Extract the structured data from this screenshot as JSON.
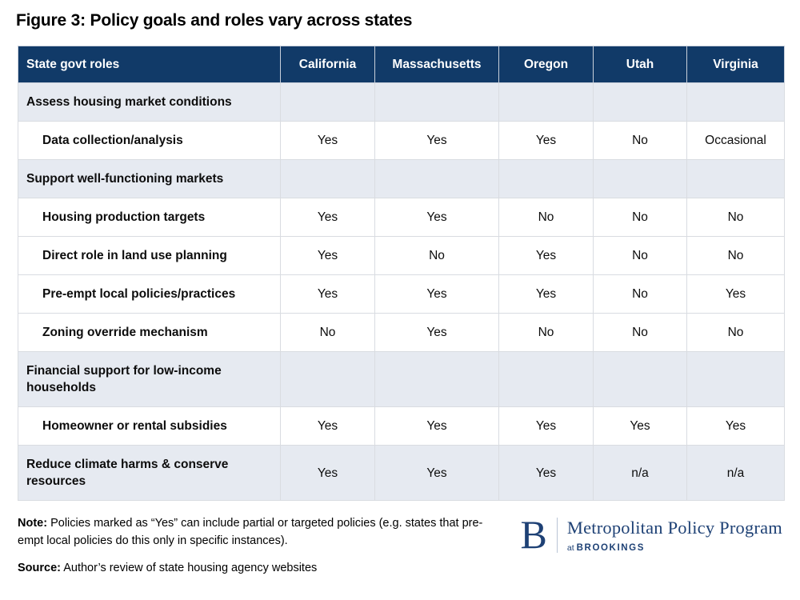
{
  "title": "Figure 3: Policy goals and roles vary across states",
  "table": {
    "header": [
      "State govt roles",
      "California",
      "Massachusetts",
      "Oregon",
      "Utah",
      "Virginia"
    ],
    "rows": [
      {
        "type": "section",
        "label": "Assess housing market conditions",
        "values": [
          "",
          "",
          "",
          "",
          ""
        ]
      },
      {
        "type": "item",
        "label": "Data collection/analysis",
        "values": [
          "Yes",
          "Yes",
          "Yes",
          "No",
          "Occasional"
        ]
      },
      {
        "type": "section",
        "label": "Support well-functioning markets",
        "values": [
          "",
          "",
          "",
          "",
          ""
        ]
      },
      {
        "type": "item",
        "label": "Housing production targets",
        "values": [
          "Yes",
          "Yes",
          "No",
          "No",
          "No"
        ]
      },
      {
        "type": "item",
        "label": "Direct role in land use planning",
        "values": [
          "Yes",
          "No",
          "Yes",
          "No",
          "No"
        ]
      },
      {
        "type": "item",
        "label": "Pre-empt local policies/practices",
        "values": [
          "Yes",
          "Yes",
          "Yes",
          "No",
          "Yes"
        ]
      },
      {
        "type": "item",
        "label": "Zoning override mechanism",
        "values": [
          "No",
          "Yes",
          "No",
          "No",
          "No"
        ]
      },
      {
        "type": "section",
        "label": "Financial support for low-income households",
        "values": [
          "",
          "",
          "",
          "",
          ""
        ]
      },
      {
        "type": "item",
        "label": "Homeowner or rental subsidies",
        "values": [
          "Yes",
          "Yes",
          "Yes",
          "Yes",
          "Yes"
        ]
      },
      {
        "type": "section-values",
        "label": "Reduce climate harms & conserve resources",
        "values": [
          "Yes",
          "Yes",
          "Yes",
          "n/a",
          "n/a"
        ]
      }
    ]
  },
  "footer": {
    "note_label": "Note:",
    "note_text": " Policies marked as “Yes” can include partial or targeted policies (e.g. states that pre-empt local policies do this only in specific instances).",
    "source_label": "Source:",
    "source_text": " Author’s review of state housing agency websites"
  },
  "logo": {
    "letter": "B",
    "program": "Metropolitan Policy Program",
    "at": "at",
    "brookings": "BROOKINGS"
  },
  "colors": {
    "header_bg": "#113A68",
    "section_bg": "#E6EAF1",
    "logo_navy": "#1E4175"
  }
}
